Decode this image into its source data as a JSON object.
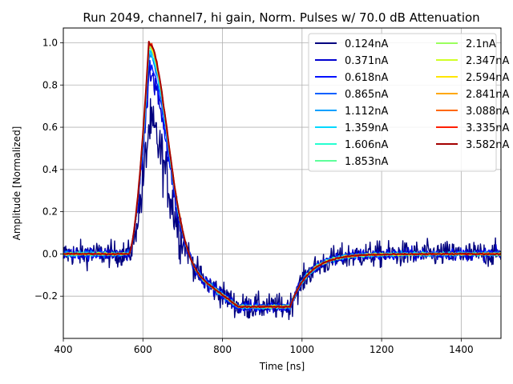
{
  "chart_data": {
    "type": "line",
    "title": "Run 2049, channel7, hi gain, Norm. Pulses w/ 70.0 dB Attenuation",
    "xlabel": "Time [ns]",
    "ylabel": "Amplitude [Normalized]",
    "xlim": [
      400,
      1500
    ],
    "ylim": [
      -0.4,
      1.07
    ],
    "xticks": [
      400,
      600,
      800,
      1000,
      1200,
      1400
    ],
    "yticks": [
      -0.2,
      0.0,
      0.2,
      0.4,
      0.6,
      0.8,
      1.0
    ],
    "ytick_labels": [
      "−0.2",
      "0.0",
      "0.2",
      "0.4",
      "0.6",
      "0.8",
      "1.0"
    ],
    "grid": true,
    "legend_position": "top-right",
    "pulse_shape": {
      "baseline": 0.0,
      "rise_start_ns": 565,
      "peak_time_ns": 615,
      "peak_value": 1.0,
      "undershoot_value": -0.25,
      "undershoot_start_ns": 840,
      "undershoot_end_ns": 970,
      "recovery_end_ns": 1160
    },
    "series": [
      {
        "name": "0.124nA",
        "color": "#00007f",
        "noise": 0.06,
        "peak": 0.6
      },
      {
        "name": "0.371nA",
        "color": "#0000d0",
        "noise": 0.03,
        "peak": 0.85
      },
      {
        "name": "0.618nA",
        "color": "#0010ff",
        "noise": 0.02,
        "peak": 0.9
      },
      {
        "name": "0.865nA",
        "color": "#0060ff",
        "noise": 0.015,
        "peak": 0.93
      },
      {
        "name": "1.112nA",
        "color": "#00a0ff",
        "noise": 0.012,
        "peak": 0.95
      },
      {
        "name": "1.359nA",
        "color": "#00d8ff",
        "noise": 0.01,
        "peak": 0.96
      },
      {
        "name": "1.606nA",
        "color": "#26ffd1",
        "noise": 0.008,
        "peak": 0.97
      },
      {
        "name": "1.853nA",
        "color": "#5dff9a",
        "noise": 0.007,
        "peak": 0.975
      },
      {
        "name": "2.1nA",
        "color": "#9aff5d",
        "noise": 0.006,
        "peak": 0.98
      },
      {
        "name": "2.347nA",
        "color": "#d1ff26",
        "noise": 0.006,
        "peak": 0.985
      },
      {
        "name": "2.594nA",
        "color": "#ffe600",
        "noise": 0.005,
        "peak": 0.99
      },
      {
        "name": "2.841nA",
        "color": "#ffa700",
        "noise": 0.005,
        "peak": 0.99
      },
      {
        "name": "3.088nA",
        "color": "#ff6800",
        "noise": 0.004,
        "peak": 0.995
      },
      {
        "name": "3.335nA",
        "color": "#ff1e00",
        "noise": 0.004,
        "peak": 1.0
      },
      {
        "name": "3.582nA",
        "color": "#a40000",
        "noise": 0.003,
        "peak": 1.0
      }
    ]
  }
}
